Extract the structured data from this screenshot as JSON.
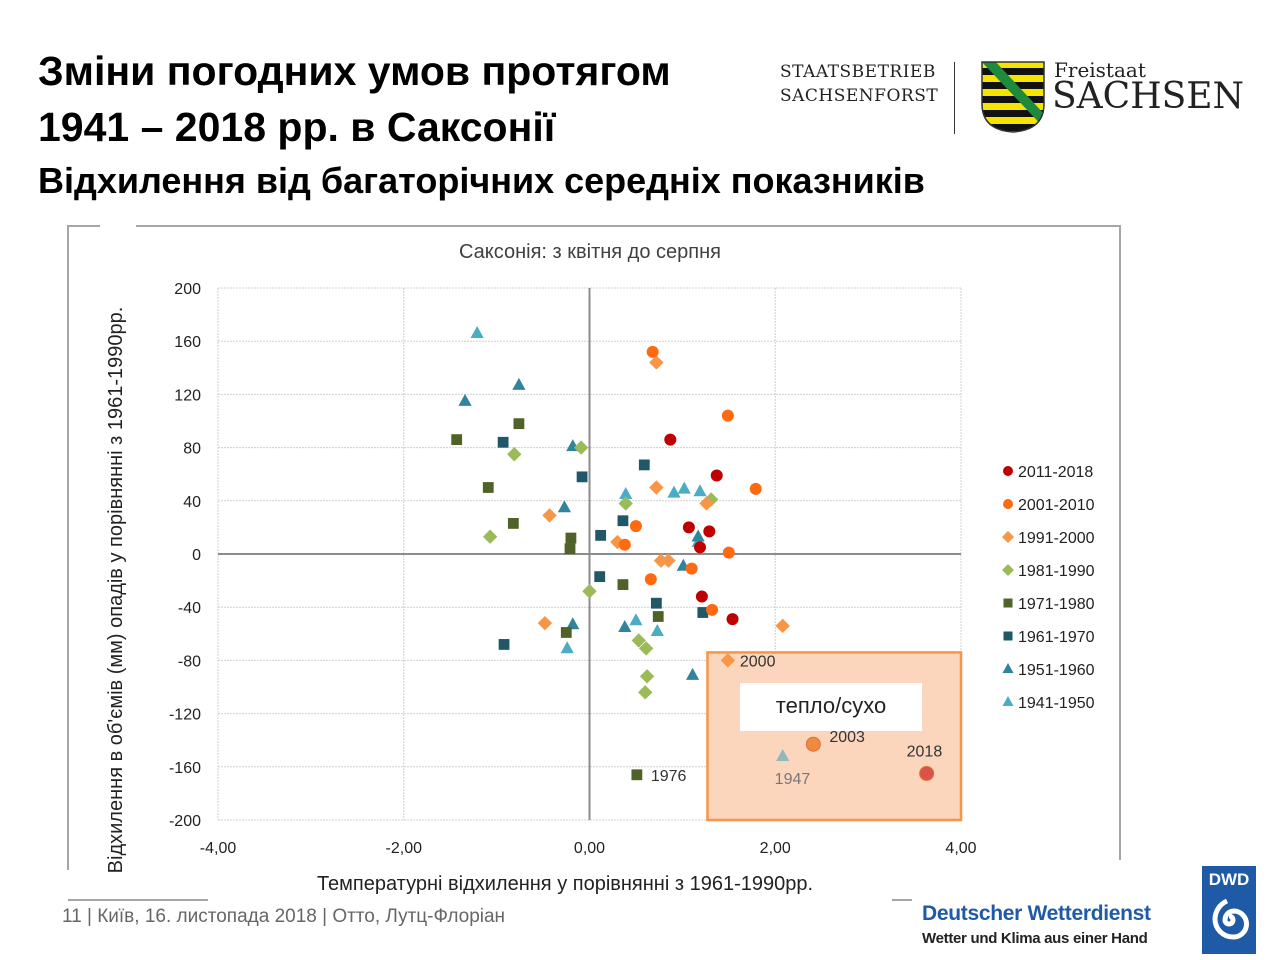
{
  "header": {
    "title_line1": "Зміни погодних умов протягом",
    "title_line2": "1941 – 2018 рр. в Саксонії",
    "subtitle": "Відхилення від багаторічних середніх показників"
  },
  "logos": {
    "sachsenforst_line1": "STAATSBETRIEB",
    "sachsenforst_line2": "SACHSENFORST",
    "freistaat": "Freistaat",
    "sachsen": "SACHSEN",
    "dwd_badge": "DWD",
    "dwd_name": "Deutscher Wetterdienst",
    "dwd_slogan": "Wetter und Klima aus einer Hand"
  },
  "footer": {
    "text": "11 | Київ,  16. листопада 2018  |  Отто, Лутц-Флоріан"
  },
  "chart_data": {
    "type": "scatter",
    "title": "Саксонія: з квітня до серпня",
    "xlabel": "Температурні відхилення у порівнянні з 1961-1990рр.",
    "ylabel": "Відхилення в об'ємів (мм) опадів у порівнянні з 1961-1990рр.",
    "xlim": [
      -4,
      4
    ],
    "ylim": [
      -200,
      200
    ],
    "xticks": [
      -4,
      -2,
      0,
      2,
      4
    ],
    "xtick_labels": [
      "-4,00",
      "-2,00",
      "0,00",
      "2,00",
      "4,00"
    ],
    "yticks": [
      200,
      160,
      120,
      80,
      40,
      0,
      -40,
      -80,
      -120,
      -160,
      -200
    ],
    "ytick_labels": [
      "200",
      "160",
      "120",
      "80",
      "40",
      "0",
      "-40",
      "-80",
      "-120",
      "-160",
      "-200"
    ],
    "grid": true,
    "legend_position": "right",
    "highlight_region": {
      "label": "тепло/сухо",
      "x": [
        1.27,
        4
      ],
      "y": [
        -200,
        -74
      ],
      "color": "#f79646"
    },
    "series": [
      {
        "name": "2011-2018",
        "marker": "circle",
        "color": "#c00000",
        "points": [
          [
            0.87,
            86
          ],
          [
            1.37,
            59
          ],
          [
            1.07,
            20
          ],
          [
            1.29,
            17
          ],
          [
            1.19,
            5
          ],
          [
            1.21,
            -32
          ],
          [
            1.54,
            -49
          ],
          [
            3.63,
            -165,
            "2018"
          ]
        ]
      },
      {
        "name": "2001-2010",
        "marker": "circle",
        "color": "#ff6a10",
        "points": [
          [
            0.68,
            152
          ],
          [
            1.49,
            104
          ],
          [
            1.79,
            49
          ],
          [
            0.5,
            21
          ],
          [
            0.38,
            7
          ],
          [
            1.5,
            1
          ],
          [
            1.1,
            -11
          ],
          [
            0.66,
            -19
          ],
          [
            1.32,
            -42
          ],
          [
            2.41,
            -143,
            "2003"
          ]
        ]
      },
      {
        "name": "1991-2000",
        "marker": "diamond",
        "color": "#f79646",
        "points": [
          [
            0.72,
            144
          ],
          [
            0.72,
            50
          ],
          [
            1.26,
            38
          ],
          [
            -0.43,
            29
          ],
          [
            0.3,
            9
          ],
          [
            0.77,
            -5
          ],
          [
            0.85,
            -5
          ],
          [
            -0.48,
            -52
          ],
          [
            2.08,
            -54
          ],
          [
            1.49,
            -80,
            "2000"
          ]
        ]
      },
      {
        "name": "1981-1990",
        "marker": "diamond",
        "color": "#9bbb59",
        "points": [
          [
            -0.09,
            80
          ],
          [
            -0.81,
            75
          ],
          [
            -1.07,
            13
          ],
          [
            0.39,
            38
          ],
          [
            1.31,
            41
          ],
          [
            0.0,
            -28
          ],
          [
            0.53,
            -65
          ],
          [
            0.61,
            -71
          ],
          [
            0.62,
            -92
          ],
          [
            0.6,
            -104
          ]
        ]
      },
      {
        "name": "1971-1980",
        "marker": "square",
        "color": "#4f6228",
        "points": [
          [
            -1.43,
            86
          ],
          [
            -0.76,
            98
          ],
          [
            -1.09,
            50
          ],
          [
            -0.82,
            23
          ],
          [
            -0.2,
            12
          ],
          [
            -0.21,
            4
          ],
          [
            0.36,
            -23
          ],
          [
            0.74,
            -47
          ],
          [
            -0.25,
            -59
          ],
          [
            0.51,
            -166,
            "1976"
          ]
        ]
      },
      {
        "name": "1961-1970",
        "marker": "square",
        "color": "#215868",
        "points": [
          [
            -0.93,
            84
          ],
          [
            -0.08,
            58
          ],
          [
            0.59,
            67
          ],
          [
            0.36,
            25
          ],
          [
            0.12,
            14
          ],
          [
            0.11,
            -17
          ],
          [
            0.72,
            -37
          ],
          [
            1.22,
            -44
          ],
          [
            -0.92,
            -68
          ]
        ]
      },
      {
        "name": "1951-1960",
        "marker": "triangle",
        "color": "#31849b",
        "points": [
          [
            -0.76,
            127
          ],
          [
            -1.34,
            115
          ],
          [
            -0.18,
            81
          ],
          [
            -0.27,
            35
          ],
          [
            1.01,
            -9
          ],
          [
            1.17,
            13
          ],
          [
            0.38,
            -55
          ],
          [
            -0.18,
            -53
          ],
          [
            1.11,
            -91
          ]
        ]
      },
      {
        "name": "1941-1950",
        "marker": "triangle",
        "color": "#4bacc6",
        "points": [
          [
            -1.21,
            166
          ],
          [
            0.39,
            45
          ],
          [
            0.91,
            46
          ],
          [
            1.02,
            49
          ],
          [
            1.19,
            47
          ],
          [
            1.17,
            9
          ],
          [
            0.5,
            -50
          ],
          [
            0.73,
            -58
          ],
          [
            -0.24,
            -71
          ],
          [
            2.08,
            -152,
            "1947"
          ]
        ]
      }
    ]
  }
}
